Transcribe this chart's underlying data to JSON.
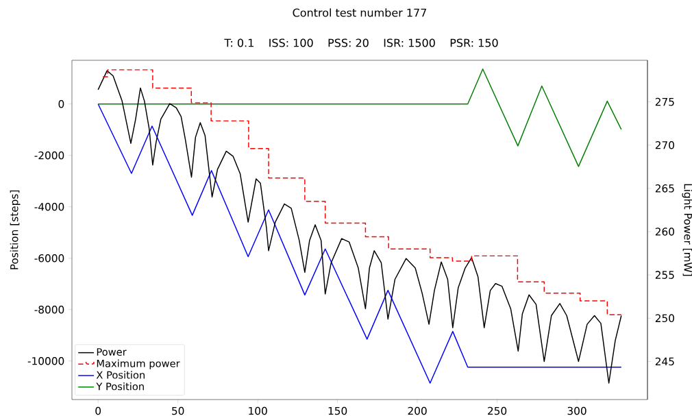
{
  "chart_data": {
    "type": "line",
    "title": "Control test number 177",
    "subtitle": "T: 0.1    ISS: 100    PSS: 20    ISR: 1500    PSR: 150",
    "ylabel": "Position [steps]",
    "y2label": "Light Power [mW]",
    "xlim": [
      -16.4,
      344.2
    ],
    "xticks": [
      0,
      50,
      100,
      150,
      200,
      250,
      300
    ],
    "ylim": [
      -11500,
      1700
    ],
    "yticks": [
      -10000,
      -8000,
      -6000,
      -4000,
      -2000,
      0
    ],
    "y2lim": [
      240.6,
      279.8
    ],
    "y2ticks": [
      245,
      250,
      255,
      260,
      265,
      270,
      275
    ],
    "grid": false,
    "legend": "bottom left",
    "marker": "none",
    "series": [
      {
        "name": "Power",
        "color": "#000000",
        "axis": "y2",
        "line_style": "solid",
        "x": [
          0,
          5.6,
          9.4,
          15,
          20.5,
          23.5,
          26.5,
          29,
          32,
          34.2,
          36.3,
          39.3,
          44.9,
          49,
          52,
          54.7,
          58.5,
          61,
          64,
          67,
          71.4,
          74.8,
          80.3,
          84.6,
          89,
          94,
          99,
          101.7,
          105.5,
          106.8,
          111,
          116.7,
          121,
          126,
          129.5,
          132.5,
          136,
          139.7,
          142.3,
          146,
          152.6,
          157.3,
          163,
          167.5,
          170,
          173,
          177.4,
          181.6,
          186,
          193,
          198.7,
          203,
          207.3,
          210.7,
          215,
          219,
          222.2,
          225.6,
          230,
          234,
          238,
          241.9,
          245.7,
          249,
          253,
          258.5,
          263.2,
          265.8,
          270,
          274.4,
          279.5,
          284,
          289.3,
          293.6,
          301,
          306.4,
          311,
          315,
          320,
          324,
          327.8
        ],
        "values": [
          276.4,
          278.6,
          278.0,
          275.1,
          270.2,
          273.0,
          276.6,
          275.1,
          271.9,
          267.7,
          270.3,
          273.0,
          274.8,
          274.3,
          273.3,
          270.6,
          266.3,
          270.9,
          272.6,
          271.1,
          264.0,
          267.2,
          269.3,
          268.7,
          266.7,
          261.1,
          266.1,
          265.6,
          260.4,
          257.8,
          261.1,
          263.2,
          262.7,
          259.0,
          255.3,
          259.0,
          260.8,
          259.0,
          252.8,
          256.4,
          259.2,
          258.8,
          255.8,
          251.1,
          255.8,
          257.8,
          256.4,
          249.9,
          254.5,
          256.9,
          255.8,
          252.9,
          249.3,
          253.2,
          256.5,
          254.5,
          248.9,
          253.5,
          255.8,
          257.0,
          254.8,
          248.9,
          253.2,
          254.0,
          253.7,
          251.1,
          246.2,
          250.5,
          252.7,
          251.6,
          245.0,
          250.3,
          251.7,
          250.3,
          245.0,
          249.3,
          250.3,
          249.4,
          242.5,
          247.4,
          250.3
        ]
      },
      {
        "name": "Maximum power",
        "type": "step",
        "color": "#ff0000",
        "axis": "y2",
        "line_style": "dashed",
        "x": [
          3,
          6,
          34.2,
          58.4,
          70.8,
          94.3,
          106.8,
          129.5,
          142.3,
          167.5,
          182,
          208,
          222,
          234,
          262.8,
          279.5,
          302,
          319,
          327.8
        ],
        "values": [
          277.9,
          278.7,
          276.6,
          274.9,
          272.8,
          269.6,
          266.2,
          263.5,
          261.0,
          259.4,
          258.0,
          257.0,
          256.6,
          257.2,
          254.2,
          252.9,
          252.0,
          250.4,
          250.4
        ]
      },
      {
        "name": "X Position",
        "color": "#0000ff",
        "line_style": "solid",
        "x": [
          0,
          20.9,
          33.8,
          59,
          71,
          94,
          106.8,
          129.5,
          142.3,
          168.5,
          181.6,
          208,
          222.2,
          231.6,
          327.8
        ],
        "values": [
          0,
          -2700,
          -860,
          -4330,
          -2590,
          -5940,
          -4120,
          -7430,
          -5640,
          -9150,
          -7250,
          -10860,
          -8850,
          -10240,
          -10240
        ]
      },
      {
        "name": "Y Position",
        "color": "#008000",
        "line_style": "solid",
        "x": [
          0,
          231.6,
          241,
          263,
          278,
          301,
          319,
          327.8
        ],
        "values": [
          0,
          0,
          1360,
          -1630,
          700,
          -2430,
          110,
          -990
        ]
      }
    ]
  }
}
